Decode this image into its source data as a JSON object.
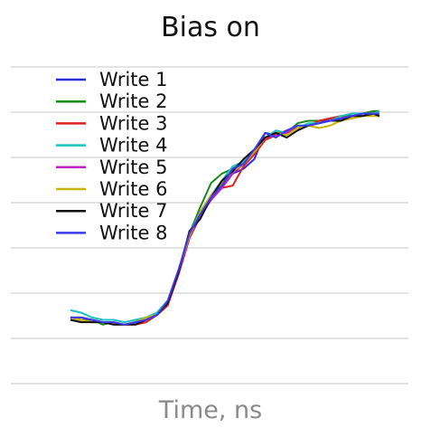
{
  "chart_data": {
    "type": "line",
    "title": "Bias on",
    "xlabel": "Time, ns",
    "ylabel": "",
    "xlim": [
      0,
      100
    ],
    "ylim": [
      0,
      100
    ],
    "grid": "horizontal",
    "legend_position": "top-left",
    "x": [
      0,
      3.5,
      7,
      10.5,
      14,
      17.5,
      21,
      24.5,
      28,
      31.5,
      35,
      38.5,
      42,
      45.5,
      49,
      52.5,
      56,
      59.5,
      63,
      66.5,
      70,
      73.5,
      77,
      80.5,
      84,
      87.5,
      91,
      94.5,
      98,
      100
    ],
    "series": [
      {
        "name": "Write 1",
        "color": "#2b2bdd",
        "values": [
          11,
          10,
          10,
          9,
          9,
          8,
          9,
          10,
          12,
          17,
          30,
          45,
          54,
          60,
          66,
          71,
          73,
          77,
          88,
          87,
          89,
          90,
          91,
          92,
          94,
          93,
          96,
          96,
          97,
          97
        ]
      },
      {
        "name": "Write 2",
        "color": "#1a8a1a",
        "values": [
          10,
          9,
          10,
          8,
          9,
          8,
          9,
          11,
          13,
          18,
          30,
          46,
          57,
          67,
          71,
          73,
          76,
          80,
          86,
          88,
          88,
          92,
          93,
          93,
          94,
          95,
          95,
          96,
          97,
          97
        ]
      },
      {
        "name": "Write 3",
        "color": "#e02020",
        "values": [
          11,
          11,
          10,
          9,
          9,
          8,
          8,
          9,
          12,
          16,
          29,
          44,
          53,
          62,
          65,
          66,
          74,
          79,
          85,
          87,
          89,
          90,
          91,
          93,
          94,
          95,
          94,
          95,
          96,
          96
        ]
      },
      {
        "name": "Write 4",
        "color": "#20c0c0",
        "values": [
          14,
          13,
          11,
          10,
          10,
          9,
          10,
          11,
          13,
          18,
          31,
          46,
          55,
          62,
          68,
          74,
          76,
          80,
          86,
          89,
          88,
          90,
          92,
          92,
          93,
          95,
          96,
          96,
          96,
          97
        ]
      },
      {
        "name": "Write 5",
        "color": "#c020c0",
        "values": [
          11,
          10,
          9,
          9,
          8,
          8,
          9,
          10,
          12,
          17,
          30,
          45,
          53,
          60,
          65,
          71,
          75,
          80,
          86,
          87,
          88,
          90,
          91,
          92,
          93,
          94,
          95,
          95,
          96,
          96
        ]
      },
      {
        "name": "Write 6",
        "color": "#c8b400",
        "values": [
          11,
          10,
          9,
          9,
          9,
          8,
          9,
          11,
          12,
          17,
          31,
          45,
          55,
          62,
          67,
          72,
          75,
          80,
          86,
          88,
          87,
          90,
          91,
          90,
          91,
          93,
          94,
          95,
          95,
          95
        ]
      },
      {
        "name": "Write 7",
        "color": "#111111",
        "values": [
          10,
          9,
          9,
          9,
          8,
          8,
          8,
          10,
          12,
          17,
          30,
          47,
          52,
          61,
          68,
          72,
          77,
          81,
          86,
          88,
          86,
          89,
          91,
          92,
          93,
          93,
          95,
          95,
          96,
          95
        ]
      },
      {
        "name": "Write 8",
        "color": "#3a3aee",
        "values": [
          11,
          11,
          10,
          9,
          9,
          8,
          9,
          10,
          12,
          18,
          31,
          46,
          54,
          61,
          66,
          73,
          75,
          81,
          88,
          86,
          89,
          91,
          91,
          92,
          93,
          94,
          95,
          96,
          96,
          96
        ]
      }
    ]
  }
}
